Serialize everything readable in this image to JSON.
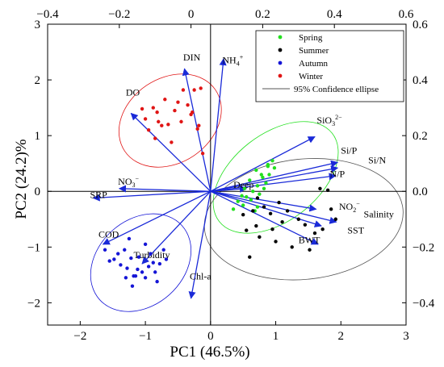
{
  "chart_data": {
    "type": "scatter",
    "subtype": "pca-biplot",
    "xlabel": "PC1 (46.5%)",
    "ylabel": "PC2 (24.2)%",
    "xlim": [
      -2.5,
      3
    ],
    "ylim": [
      -2.4,
      3
    ],
    "x_ticks": [
      -2,
      -1,
      0,
      1,
      2,
      3
    ],
    "y_ticks": [
      -2,
      -1,
      0,
      1,
      2,
      3
    ],
    "top_axis": {
      "lim": [
        -0.4,
        0.6
      ],
      "ticks": [
        "−0.4",
        "−0.2",
        "0",
        "0.2",
        "0.4",
        "0.6"
      ]
    },
    "right_axis": {
      "lim": [
        -0.48,
        0.6
      ],
      "ticks": [
        "−0.4",
        "−0.2",
        "0.0",
        "0.2",
        "0.4",
        "0.6"
      ]
    },
    "grid": false,
    "origin_lines": true,
    "legend": {
      "placement": "top-right",
      "entries": [
        {
          "label": "Spring",
          "color": "#22e01e",
          "kind": "point"
        },
        {
          "label": "Summer",
          "color": "#000000",
          "kind": "point"
        },
        {
          "label": "Autumn",
          "color": "#1515d6",
          "kind": "point"
        },
        {
          "label": "Winter",
          "color": "#e01515",
          "kind": "point"
        },
        {
          "label": "95% Confidence ellipse",
          "color": "#555555",
          "kind": "line"
        }
      ]
    },
    "series": [
      {
        "name": "Spring",
        "color": "#22e01e",
        "points": [
          [
            0.55,
            -0.1
          ],
          [
            0.65,
            0.0
          ],
          [
            0.72,
            0.1
          ],
          [
            0.8,
            0.25
          ],
          [
            0.88,
            0.48
          ],
          [
            0.95,
            0.55
          ],
          [
            0.88,
            0.45
          ],
          [
            0.78,
            0.3
          ],
          [
            0.7,
            0.38
          ],
          [
            0.6,
            0.2
          ],
          [
            0.52,
            0.05
          ],
          [
            0.48,
            -0.08
          ],
          [
            0.42,
            -0.18
          ],
          [
            0.35,
            -0.32
          ],
          [
            0.5,
            -0.25
          ],
          [
            0.62,
            -0.15
          ],
          [
            0.75,
            -0.05
          ],
          [
            0.85,
            0.15
          ],
          [
            0.9,
            0.3
          ],
          [
            0.98,
            0.42
          ],
          [
            0.72,
            -0.28
          ],
          [
            0.82,
            0.05
          ],
          [
            0.68,
            -0.35
          ]
        ]
      },
      {
        "name": "Summer",
        "color": "#000000",
        "points": [
          [
            0.5,
            -0.42
          ],
          [
            0.65,
            -0.35
          ],
          [
            0.7,
            -0.62
          ],
          [
            0.75,
            -0.82
          ],
          [
            0.92,
            -0.4
          ],
          [
            0.95,
            -0.68
          ],
          [
            1.0,
            -0.9
          ],
          [
            1.1,
            -0.55
          ],
          [
            1.18,
            -0.35
          ],
          [
            1.25,
            -1.0
          ],
          [
            1.35,
            -0.5
          ],
          [
            1.45,
            -0.6
          ],
          [
            1.52,
            -1.05
          ],
          [
            1.6,
            -0.75
          ],
          [
            1.72,
            -0.68
          ],
          [
            1.85,
            -0.32
          ],
          [
            1.92,
            -0.5
          ],
          [
            1.8,
            0.02
          ],
          [
            1.68,
            0.05
          ],
          [
            0.82,
            -0.28
          ],
          [
            0.72,
            -0.12
          ],
          [
            1.05,
            -0.2
          ],
          [
            0.6,
            -1.18
          ],
          [
            0.55,
            -0.7
          ]
        ]
      },
      {
        "name": "Autumn",
        "color": "#1515d6",
        "points": [
          [
            -1.62,
            -1.05
          ],
          [
            -1.55,
            -1.25
          ],
          [
            -1.48,
            -1.22
          ],
          [
            -1.42,
            -1.12
          ],
          [
            -1.38,
            -1.32
          ],
          [
            -1.32,
            -1.05
          ],
          [
            -1.28,
            -1.38
          ],
          [
            -1.22,
            -1.2
          ],
          [
            -1.18,
            -1.52
          ],
          [
            -1.12,
            -1.4
          ],
          [
            -1.1,
            -1.18
          ],
          [
            -1.05,
            -1.45
          ],
          [
            -1.0,
            -0.95
          ],
          [
            -0.95,
            -1.35
          ],
          [
            -0.92,
            -1.12
          ],
          [
            -0.88,
            -1.28
          ],
          [
            -0.82,
            -1.62
          ],
          [
            -0.78,
            -1.3
          ],
          [
            -0.72,
            -1.05
          ],
          [
            -0.68,
            -1.22
          ],
          [
            -1.25,
            -0.85
          ],
          [
            -1.2,
            -1.7
          ],
          [
            -1.15,
            -1.52
          ],
          [
            -1.0,
            -1.55
          ],
          [
            -0.85,
            -1.45
          ],
          [
            -1.3,
            -1.55
          ]
        ]
      },
      {
        "name": "Winter",
        "color": "#e01515",
        "points": [
          [
            -1.05,
            1.48
          ],
          [
            -1.0,
            1.3
          ],
          [
            -0.95,
            1.1
          ],
          [
            -0.88,
            1.5
          ],
          [
            -0.85,
            0.95
          ],
          [
            -0.8,
            1.25
          ],
          [
            -0.75,
            1.18
          ],
          [
            -0.7,
            1.65
          ],
          [
            -0.65,
            1.2
          ],
          [
            -0.6,
            0.88
          ],
          [
            -0.55,
            1.45
          ],
          [
            -0.5,
            1.6
          ],
          [
            -0.45,
            1.25
          ],
          [
            -0.42,
            1.82
          ],
          [
            -0.35,
            1.55
          ],
          [
            -0.3,
            1.38
          ],
          [
            -0.28,
            1.42
          ],
          [
            -0.2,
            1.12
          ],
          [
            -0.15,
            1.85
          ],
          [
            -0.25,
            1.82
          ],
          [
            -0.18,
            1.18
          ],
          [
            -0.12,
            0.68
          ],
          [
            -0.82,
            1.42
          ]
        ]
      }
    ],
    "ellipses": [
      {
        "name": "Spring",
        "color": "#22e01e",
        "center": [
          1.0,
          0.25
        ],
        "rx": 1.1,
        "ry": 0.78,
        "angle": 38
      },
      {
        "name": "Summer",
        "color": "#555555",
        "center": [
          1.43,
          -0.5
        ],
        "rx": 1.53,
        "ry": 1.08,
        "angle": 6
      },
      {
        "name": "Autumn",
        "color": "#1515d6",
        "center": [
          -1.07,
          -1.28
        ],
        "rx": 0.85,
        "ry": 0.77,
        "angle": 42
      },
      {
        "name": "Winter",
        "color": "#e01515",
        "center": [
          -0.62,
          1.27
        ],
        "rx": 0.84,
        "ry": 0.76,
        "angle": 34
      }
    ],
    "loadings_color": "#1a2ad8",
    "loadings": [
      {
        "label": "DIN",
        "x": -0.4,
        "y": 2.2,
        "lx": -0.42,
        "ly": 2.35
      },
      {
        "label": "NH4+",
        "x": 0.2,
        "y": 2.38,
        "lx": 0.18,
        "ly": 2.3
      },
      {
        "label": "DO",
        "x": -1.22,
        "y": 1.4,
        "lx": -1.3,
        "ly": 1.72
      },
      {
        "label": "SiO3 2−",
        "x": 1.6,
        "y": 0.98,
        "lx": 1.63,
        "ly": 1.22
      },
      {
        "label": "Si/P",
        "x": 1.95,
        "y": 0.52,
        "lx": 2.0,
        "ly": 0.68
      },
      {
        "label": "Si/N",
        "x": 1.95,
        "y": 0.42,
        "lx": 2.42,
        "ly": 0.5
      },
      {
        "label": "N/P",
        "x": 1.92,
        "y": 0.28,
        "lx": 1.83,
        "ly": 0.26
      },
      {
        "label": "Deep",
        "x": 0.55,
        "y": 0.05,
        "lx": 0.35,
        "ly": 0.06
      },
      {
        "label": "NO2−",
        "x": 1.62,
        "y": -0.32,
        "lx": 1.97,
        "ly": -0.33
      },
      {
        "label": "Salinity",
        "x": 1.93,
        "y": -0.55,
        "lx": 2.35,
        "ly": -0.47
      },
      {
        "label": "SST",
        "x": 1.7,
        "y": -0.62,
        "lx": 2.1,
        "ly": -0.76
      },
      {
        "label": "BWT",
        "x": 1.65,
        "y": -0.95,
        "lx": 1.35,
        "ly": -0.93
      },
      {
        "label": "Chl-a",
        "x": -0.3,
        "y": -1.92,
        "lx": -0.32,
        "ly": -1.58
      },
      {
        "label": "Turbidity",
        "x": -1.05,
        "y": -1.3,
        "lx": -1.18,
        "ly": -1.2
      },
      {
        "label": "COD",
        "x": -1.65,
        "y": -0.95,
        "lx": -1.72,
        "ly": -0.83
      },
      {
        "label": "SRP",
        "x": -1.8,
        "y": -0.12,
        "lx": -1.85,
        "ly": -0.12
      },
      {
        "label": "NO3−",
        "x": -1.4,
        "y": 0.05,
        "lx": -1.42,
        "ly": 0.12
      }
    ]
  }
}
